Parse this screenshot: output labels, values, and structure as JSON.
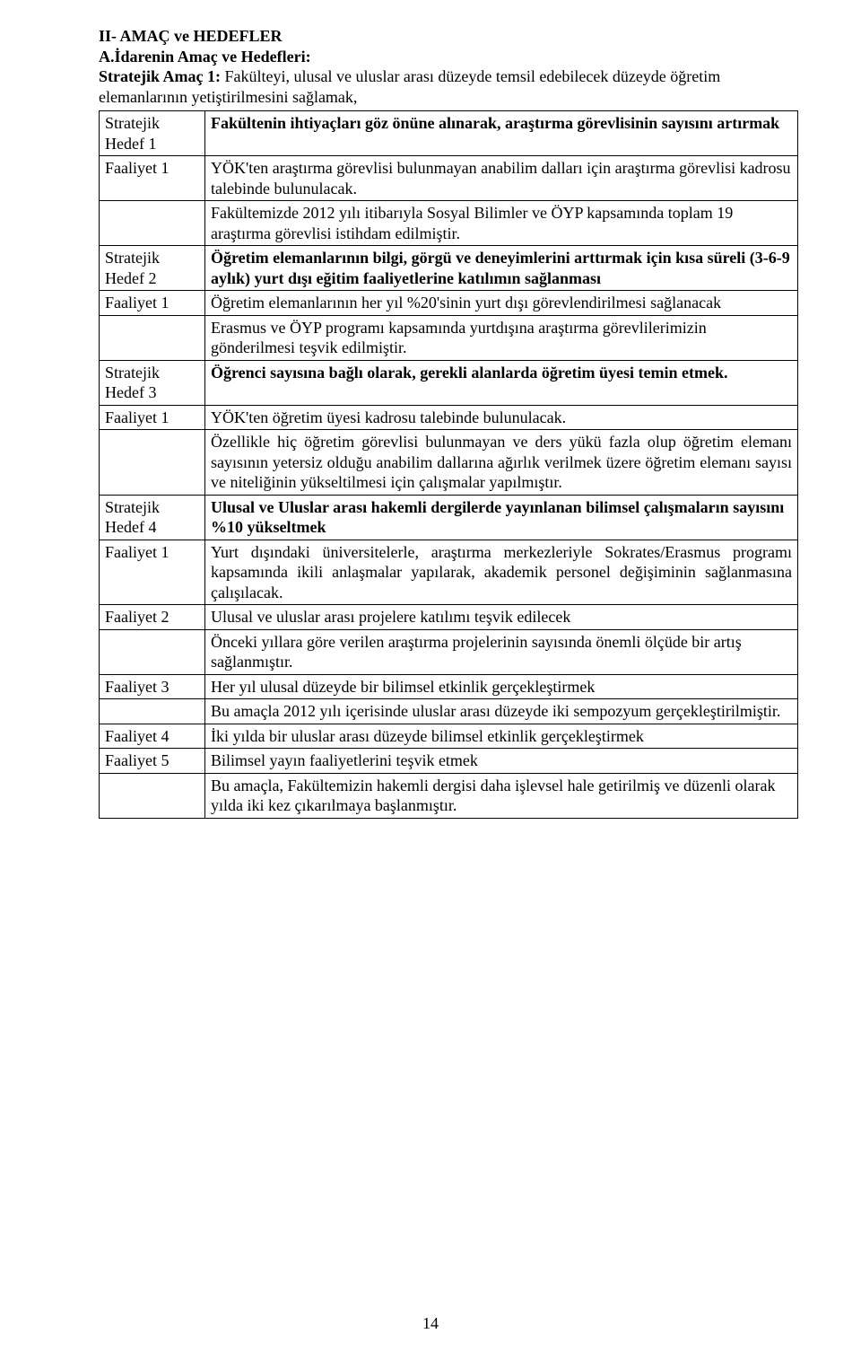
{
  "heading": "II- AMAÇ ve HEDEFLER",
  "subheading": "A.İdarenin Amaç ve Hedefleri:",
  "amac_label": "Stratejik Amaç 1:",
  "amac_text_1": " Fakülteyi, ulusal ve uluslar arası düzeyde temsil edebilecek düzeyde öğretim elemanlarının yetiştirilmesini sağlamak,",
  "rows": {
    "sh1_label": "Stratejik Hedef 1",
    "sh1_body": "Fakültenin ihtiyaçları göz önüne alınarak, araştırma görevlisinin sayısını artırmak",
    "sh1_f1_label": "Faaliyet 1",
    "sh1_f1_body": "YÖK'ten araştırma görevlisi bulunmayan anabilim dalları için araştırma görevlisi kadrosu talebinde bulunulacak.",
    "sh1_result": "Fakültemizde 2012 yılı itibarıyla Sosyal Bilimler ve ÖYP kapsamında toplam 19 araştırma görevlisi istihdam edilmiştir.",
    "sh2_label": "Stratejik Hedef 2",
    "sh2_body": "Öğretim elemanlarının bilgi, görgü ve deneyimlerini arttırmak için kısa süreli (3-6-9 aylık) yurt dışı eğitim faaliyetlerine katılımın sağlanması",
    "sh2_f1_label": "Faaliyet 1",
    "sh2_f1_body": "Öğretim elemanlarının her yıl %20'sinin yurt dışı görevlendirilmesi sağlanacak",
    "sh2_result": "Erasmus ve ÖYP programı kapsamında yurtdışına araştırma görevlilerimizin gönderilmesi teşvik edilmiştir.",
    "sh3_label": "Stratejik Hedef 3",
    "sh3_body": "Öğrenci sayısına bağlı olarak, gerekli alanlarda öğretim üyesi temin etmek.",
    "sh3_f1_label": "Faaliyet 1",
    "sh3_f1_body": "YÖK'ten öğretim üyesi kadrosu talebinde bulunulacak.",
    "sh3_result": "Özellikle hiç öğretim görevlisi bulunmayan ve ders yükü fazla olup öğretim elemanı sayısının yetersiz olduğu anabilim dallarına ağırlık verilmek üzere öğretim elemanı sayısı ve niteliğinin yükseltilmesi için çalışmalar yapılmıştır.",
    "sh4_label": "Stratejik Hedef 4",
    "sh4_body": "Ulusal ve Uluslar arası hakemli dergilerde yayınlanan bilimsel çalışmaların sayısını %10 yükseltmek",
    "sh4_f1_label": "Faaliyet 1",
    "sh4_f1_body": "Yurt dışındaki üniversitelerle, araştırma merkezleriyle Sokrates/Erasmus programı kapsamında ikili anlaşmalar yapılarak, akademik personel değişiminin sağlanmasına çalışılacak.",
    "sh4_f2_label": "Faaliyet 2",
    "sh4_f2_body": "Ulusal ve uluslar arası projelere katılımı teşvik edilecek",
    "sh4_f2_result": "Önceki yıllara göre verilen araştırma projelerinin sayısında önemli ölçüde bir artış sağlanmıştır.",
    "sh4_f3_label": "Faaliyet 3",
    "sh4_f3_body": "Her yıl ulusal düzeyde bir bilimsel etkinlik gerçekleştirmek",
    "sh4_f3_result": "Bu amaçla 2012 yılı içerisinde uluslar arası düzeyde iki sempozyum gerçekleştirilmiştir.",
    "sh4_f4_label": "Faaliyet 4",
    "sh4_f4_body": "İki yılda bir uluslar arası düzeyde bilimsel etkinlik gerçekleştirmek",
    "sh4_f5_label": "Faaliyet 5",
    "sh4_f5_body": "Bilimsel yayın faaliyetlerini teşvik etmek",
    "sh4_f5_result": "Bu amaçla, Fakültemizin hakemli dergisi daha işlevsel hale getirilmiş ve düzenli olarak yılda iki kez  çıkarılmaya başlanmıştır."
  },
  "page_number": "14"
}
